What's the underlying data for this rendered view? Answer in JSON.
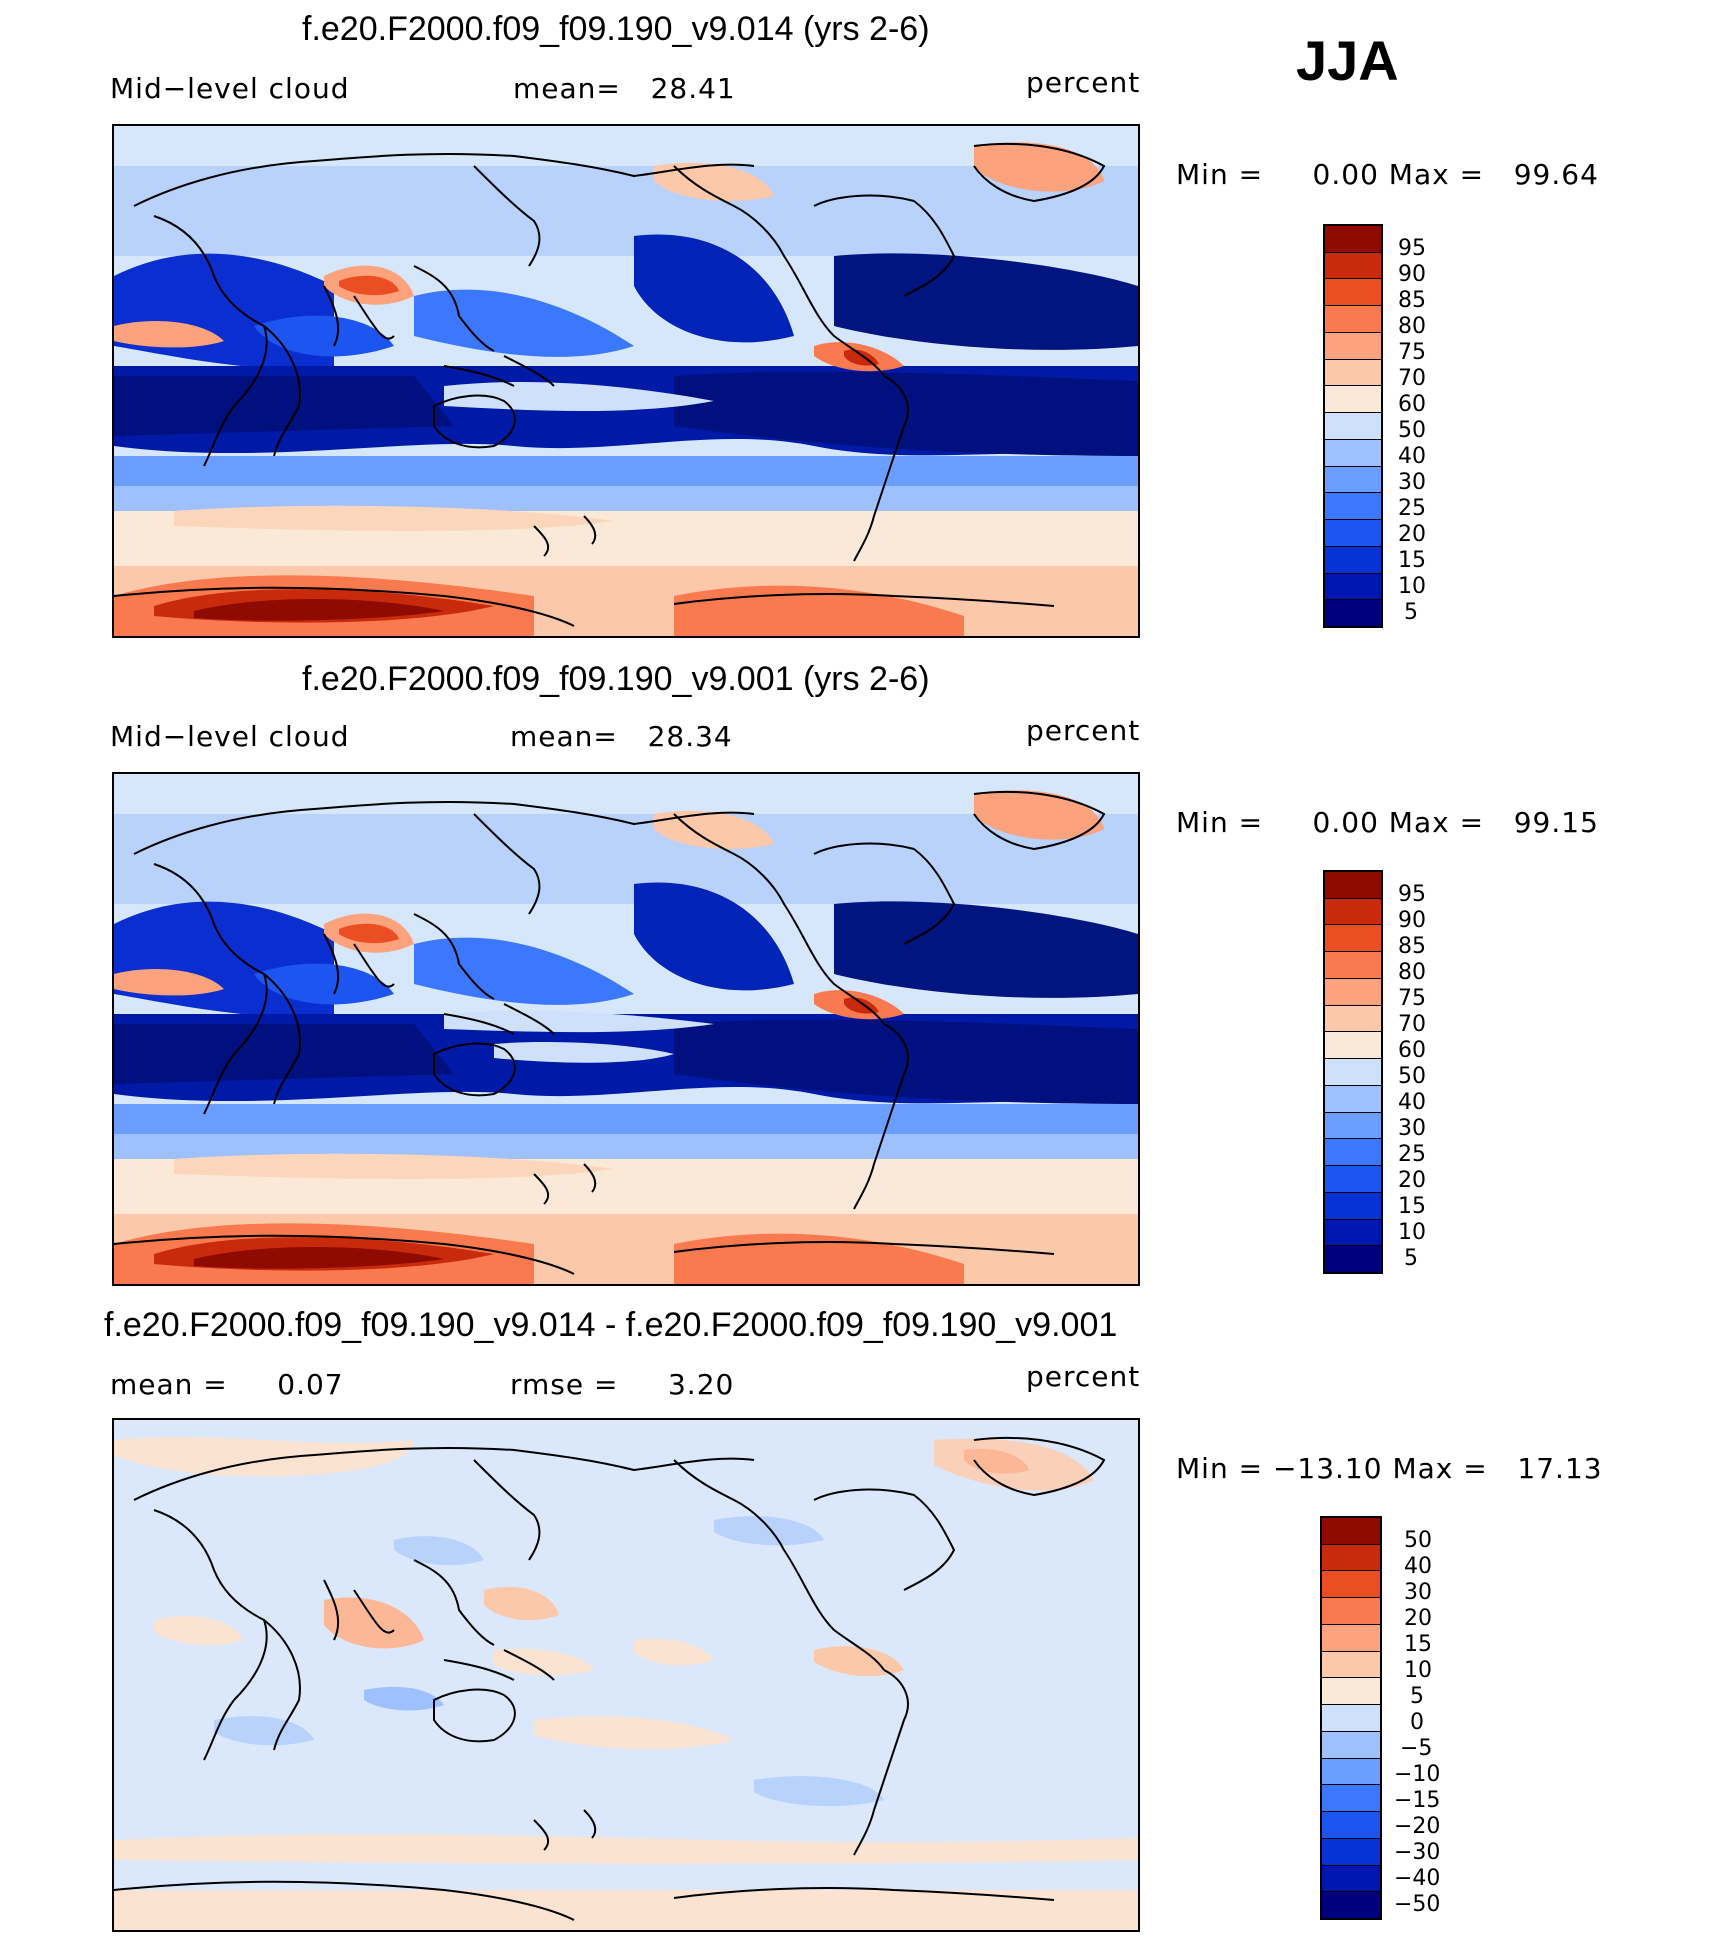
{
  "season": "JJA",
  "panels": [
    {
      "title": "f.e20.F2000.f09_f09.190_v9.014 (yrs 2-6)",
      "left_label": "Mid−level cloud",
      "center_label": "mean=   28.41",
      "right_label": "percent",
      "minmax": "Min =     0.00 Max =   99.64",
      "colorbar_labels": [
        "95",
        "90",
        "85",
        "80",
        "75",
        "70",
        "60",
        "50",
        "40",
        "30",
        "25",
        "20",
        "15",
        "10",
        "5"
      ]
    },
    {
      "title": "f.e20.F2000.f09_f09.190_v9.001 (yrs 2-6)",
      "left_label": "Mid−level cloud",
      "center_label": "mean=   28.34",
      "right_label": "percent",
      "minmax": "Min =     0.00 Max =   99.15",
      "colorbar_labels": [
        "95",
        "90",
        "85",
        "80",
        "75",
        "70",
        "60",
        "50",
        "40",
        "30",
        "25",
        "20",
        "15",
        "10",
        "5"
      ]
    },
    {
      "title": "f.e20.F2000.f09_f09.190_v9.014 - f.e20.F2000.f09_f09.190_v9.001",
      "left_label": "mean =     0.07",
      "center_label": "rmse =     3.20",
      "right_label": "percent",
      "minmax": "Min = −13.10 Max =   17.13",
      "colorbar_labels": [
        "50",
        "40",
        "30",
        "20",
        "15",
        "10",
        "5",
        "0",
        "−5",
        "−10",
        "−15",
        "−20",
        "−30",
        "−40",
        "−50"
      ]
    }
  ],
  "colors": {
    "abs_scale": [
      "#00007f",
      "#0016b0",
      "#0733d6",
      "#1c55f0",
      "#3b78ff",
      "#6a9eff",
      "#9fc0ff",
      "#cfe0fa",
      "#fbe9d8",
      "#fcc8aa",
      "#fca27c",
      "#f97a4f",
      "#ec4e24",
      "#c92a0c",
      "#8f0a00"
    ],
    "diff_scale": [
      "#00007f",
      "#0016b0",
      "#0733d6",
      "#1c55f0",
      "#3b78ff",
      "#6a9eff",
      "#9fc0ff",
      "#cfe0fa",
      "#fbe9d8",
      "#fcc8aa",
      "#fca27c",
      "#f97a4f",
      "#ec4e24",
      "#c92a0c",
      "#8f0a00"
    ]
  }
}
